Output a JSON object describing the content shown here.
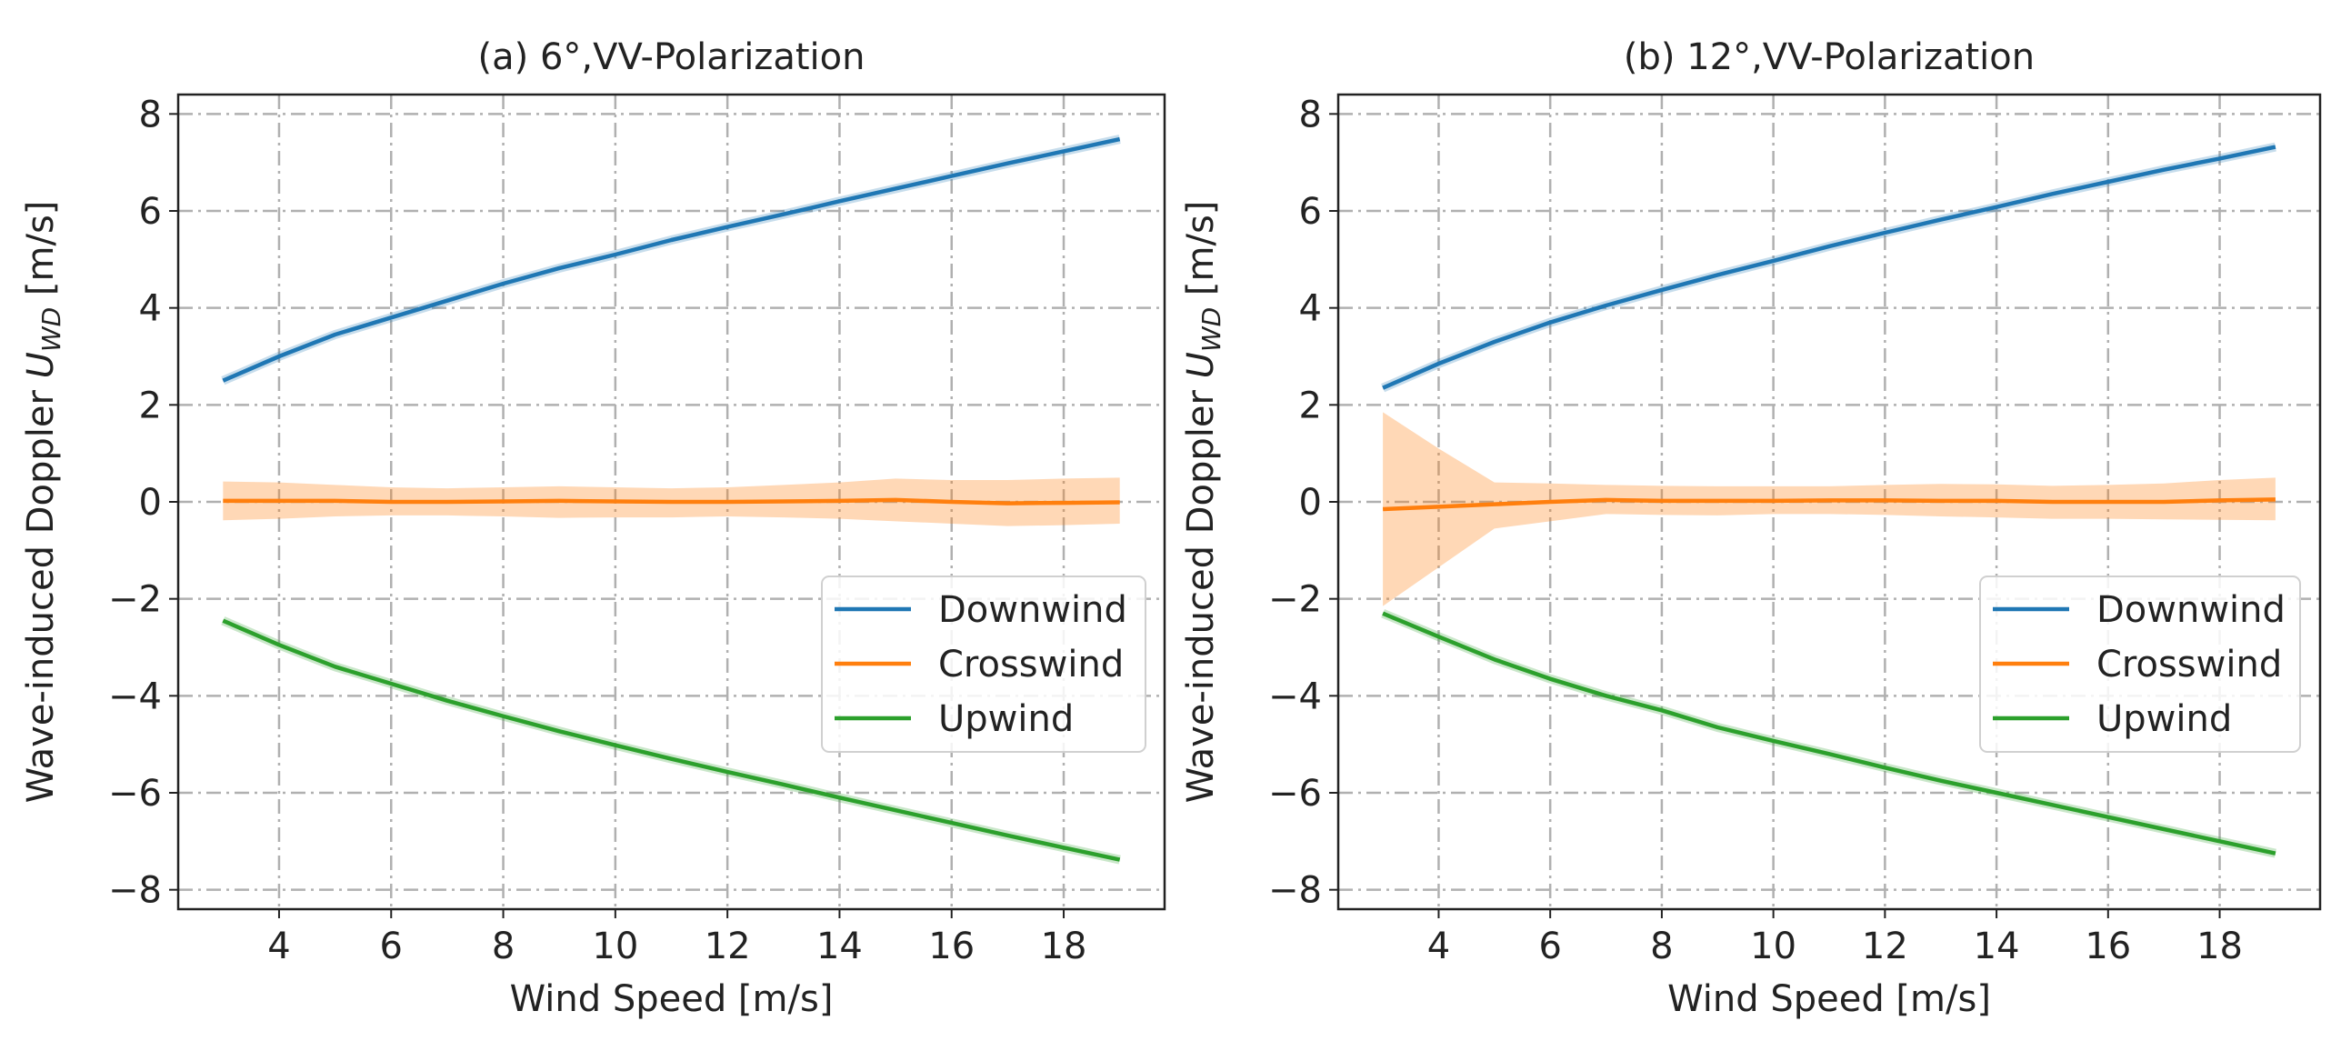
{
  "chart_data": [
    {
      "type": "line",
      "title": "(a) 6°,VV-Polarization",
      "xlabel": "Wind Speed [m/s]",
      "ylabel": {
        "prefix": "Wave-induced Doppler ",
        "symbol": "U",
        "subscript": "WD",
        "suffix": " [m/s]"
      },
      "xlim": [
        2.2,
        19.8
      ],
      "ylim": [
        -8.4,
        8.4
      ],
      "xticks": [
        4,
        6,
        8,
        10,
        12,
        14,
        16,
        18
      ],
      "yticks": [
        -8,
        -6,
        -4,
        -2,
        0,
        2,
        4,
        6,
        8
      ],
      "ytick_labels": [
        "−8",
        "−6",
        "−4",
        "−2",
        "0",
        "2",
        "4",
        "6",
        "8"
      ],
      "grid": true,
      "legend_position": "center-right",
      "x": [
        3,
        4,
        5,
        6,
        7,
        8,
        9,
        10,
        11,
        12,
        13,
        14,
        15,
        16,
        17,
        18,
        19
      ],
      "series": [
        {
          "name": "Downwind",
          "color": "#1f77b4",
          "values": [
            2.5,
            3.0,
            3.45,
            3.8,
            4.15,
            4.5,
            4.82,
            5.1,
            5.4,
            5.67,
            5.93,
            6.2,
            6.46,
            6.72,
            6.98,
            7.23,
            7.48
          ]
        },
        {
          "name": "Crosswind",
          "color": "#ff7f0e",
          "values": [
            0.02,
            0.02,
            0.02,
            0.0,
            0.0,
            0.01,
            0.02,
            0.01,
            0.0,
            0.0,
            0.01,
            0.02,
            0.04,
            0.0,
            -0.03,
            -0.02,
            -0.01
          ],
          "band_upper": [
            0.42,
            0.4,
            0.35,
            0.3,
            0.28,
            0.3,
            0.32,
            0.3,
            0.28,
            0.3,
            0.35,
            0.4,
            0.48,
            0.45,
            0.45,
            0.48,
            0.5
          ],
          "band_lower": [
            -0.38,
            -0.35,
            -0.3,
            -0.28,
            -0.28,
            -0.3,
            -0.33,
            -0.32,
            -0.32,
            -0.3,
            -0.32,
            -0.35,
            -0.4,
            -0.45,
            -0.5,
            -0.48,
            -0.45
          ]
        },
        {
          "name": "Upwind",
          "color": "#2ca02c",
          "values": [
            -2.45,
            -2.95,
            -3.4,
            -3.75,
            -4.1,
            -4.42,
            -4.73,
            -5.02,
            -5.3,
            -5.57,
            -5.83,
            -6.1,
            -6.36,
            -6.62,
            -6.88,
            -7.13,
            -7.38
          ]
        }
      ]
    },
    {
      "type": "line",
      "title": "(b) 12°,VV-Polarization",
      "xlabel": "Wind Speed [m/s]",
      "ylabel": {
        "prefix": "Wave-induced Doppler ",
        "symbol": "U",
        "subscript": "WD",
        "suffix": " [m/s]"
      },
      "xlim": [
        2.2,
        19.8
      ],
      "ylim": [
        -8.4,
        8.4
      ],
      "xticks": [
        4,
        6,
        8,
        10,
        12,
        14,
        16,
        18
      ],
      "yticks": [
        -8,
        -6,
        -4,
        -2,
        0,
        2,
        4,
        6,
        8
      ],
      "ytick_labels": [
        "−8",
        "−6",
        "−4",
        "−2",
        "0",
        "2",
        "4",
        "6",
        "8"
      ],
      "grid": true,
      "legend_position": "center-right",
      "x": [
        3,
        4,
        5,
        6,
        7,
        8,
        9,
        10,
        11,
        12,
        13,
        14,
        15,
        16,
        17,
        18,
        19
      ],
      "series": [
        {
          "name": "Downwind",
          "color": "#1f77b4",
          "values": [
            2.35,
            2.85,
            3.3,
            3.7,
            4.05,
            4.37,
            4.68,
            4.97,
            5.27,
            5.55,
            5.82,
            6.08,
            6.35,
            6.6,
            6.85,
            7.08,
            7.32
          ]
        },
        {
          "name": "Crosswind",
          "color": "#ff7f0e",
          "values": [
            -0.15,
            -0.1,
            -0.05,
            0.0,
            0.04,
            0.02,
            0.02,
            0.02,
            0.03,
            0.03,
            0.02,
            0.02,
            0.0,
            0.0,
            0.0,
            0.03,
            0.05
          ],
          "band_upper": [
            1.85,
            1.1,
            0.4,
            0.38,
            0.35,
            0.33,
            0.32,
            0.32,
            0.32,
            0.35,
            0.37,
            0.36,
            0.33,
            0.35,
            0.38,
            0.45,
            0.5
          ],
          "band_lower": [
            -2.15,
            -1.35,
            -0.55,
            -0.4,
            -0.25,
            -0.27,
            -0.28,
            -0.25,
            -0.25,
            -0.27,
            -0.3,
            -0.32,
            -0.35,
            -0.35,
            -0.36,
            -0.37,
            -0.38
          ]
        },
        {
          "name": "Upwind",
          "color": "#2ca02c",
          "values": [
            -2.3,
            -2.78,
            -3.25,
            -3.65,
            -4.0,
            -4.3,
            -4.65,
            -4.93,
            -5.2,
            -5.48,
            -5.75,
            -6.0,
            -6.25,
            -6.5,
            -6.75,
            -7.0,
            -7.25
          ]
        }
      ]
    }
  ]
}
